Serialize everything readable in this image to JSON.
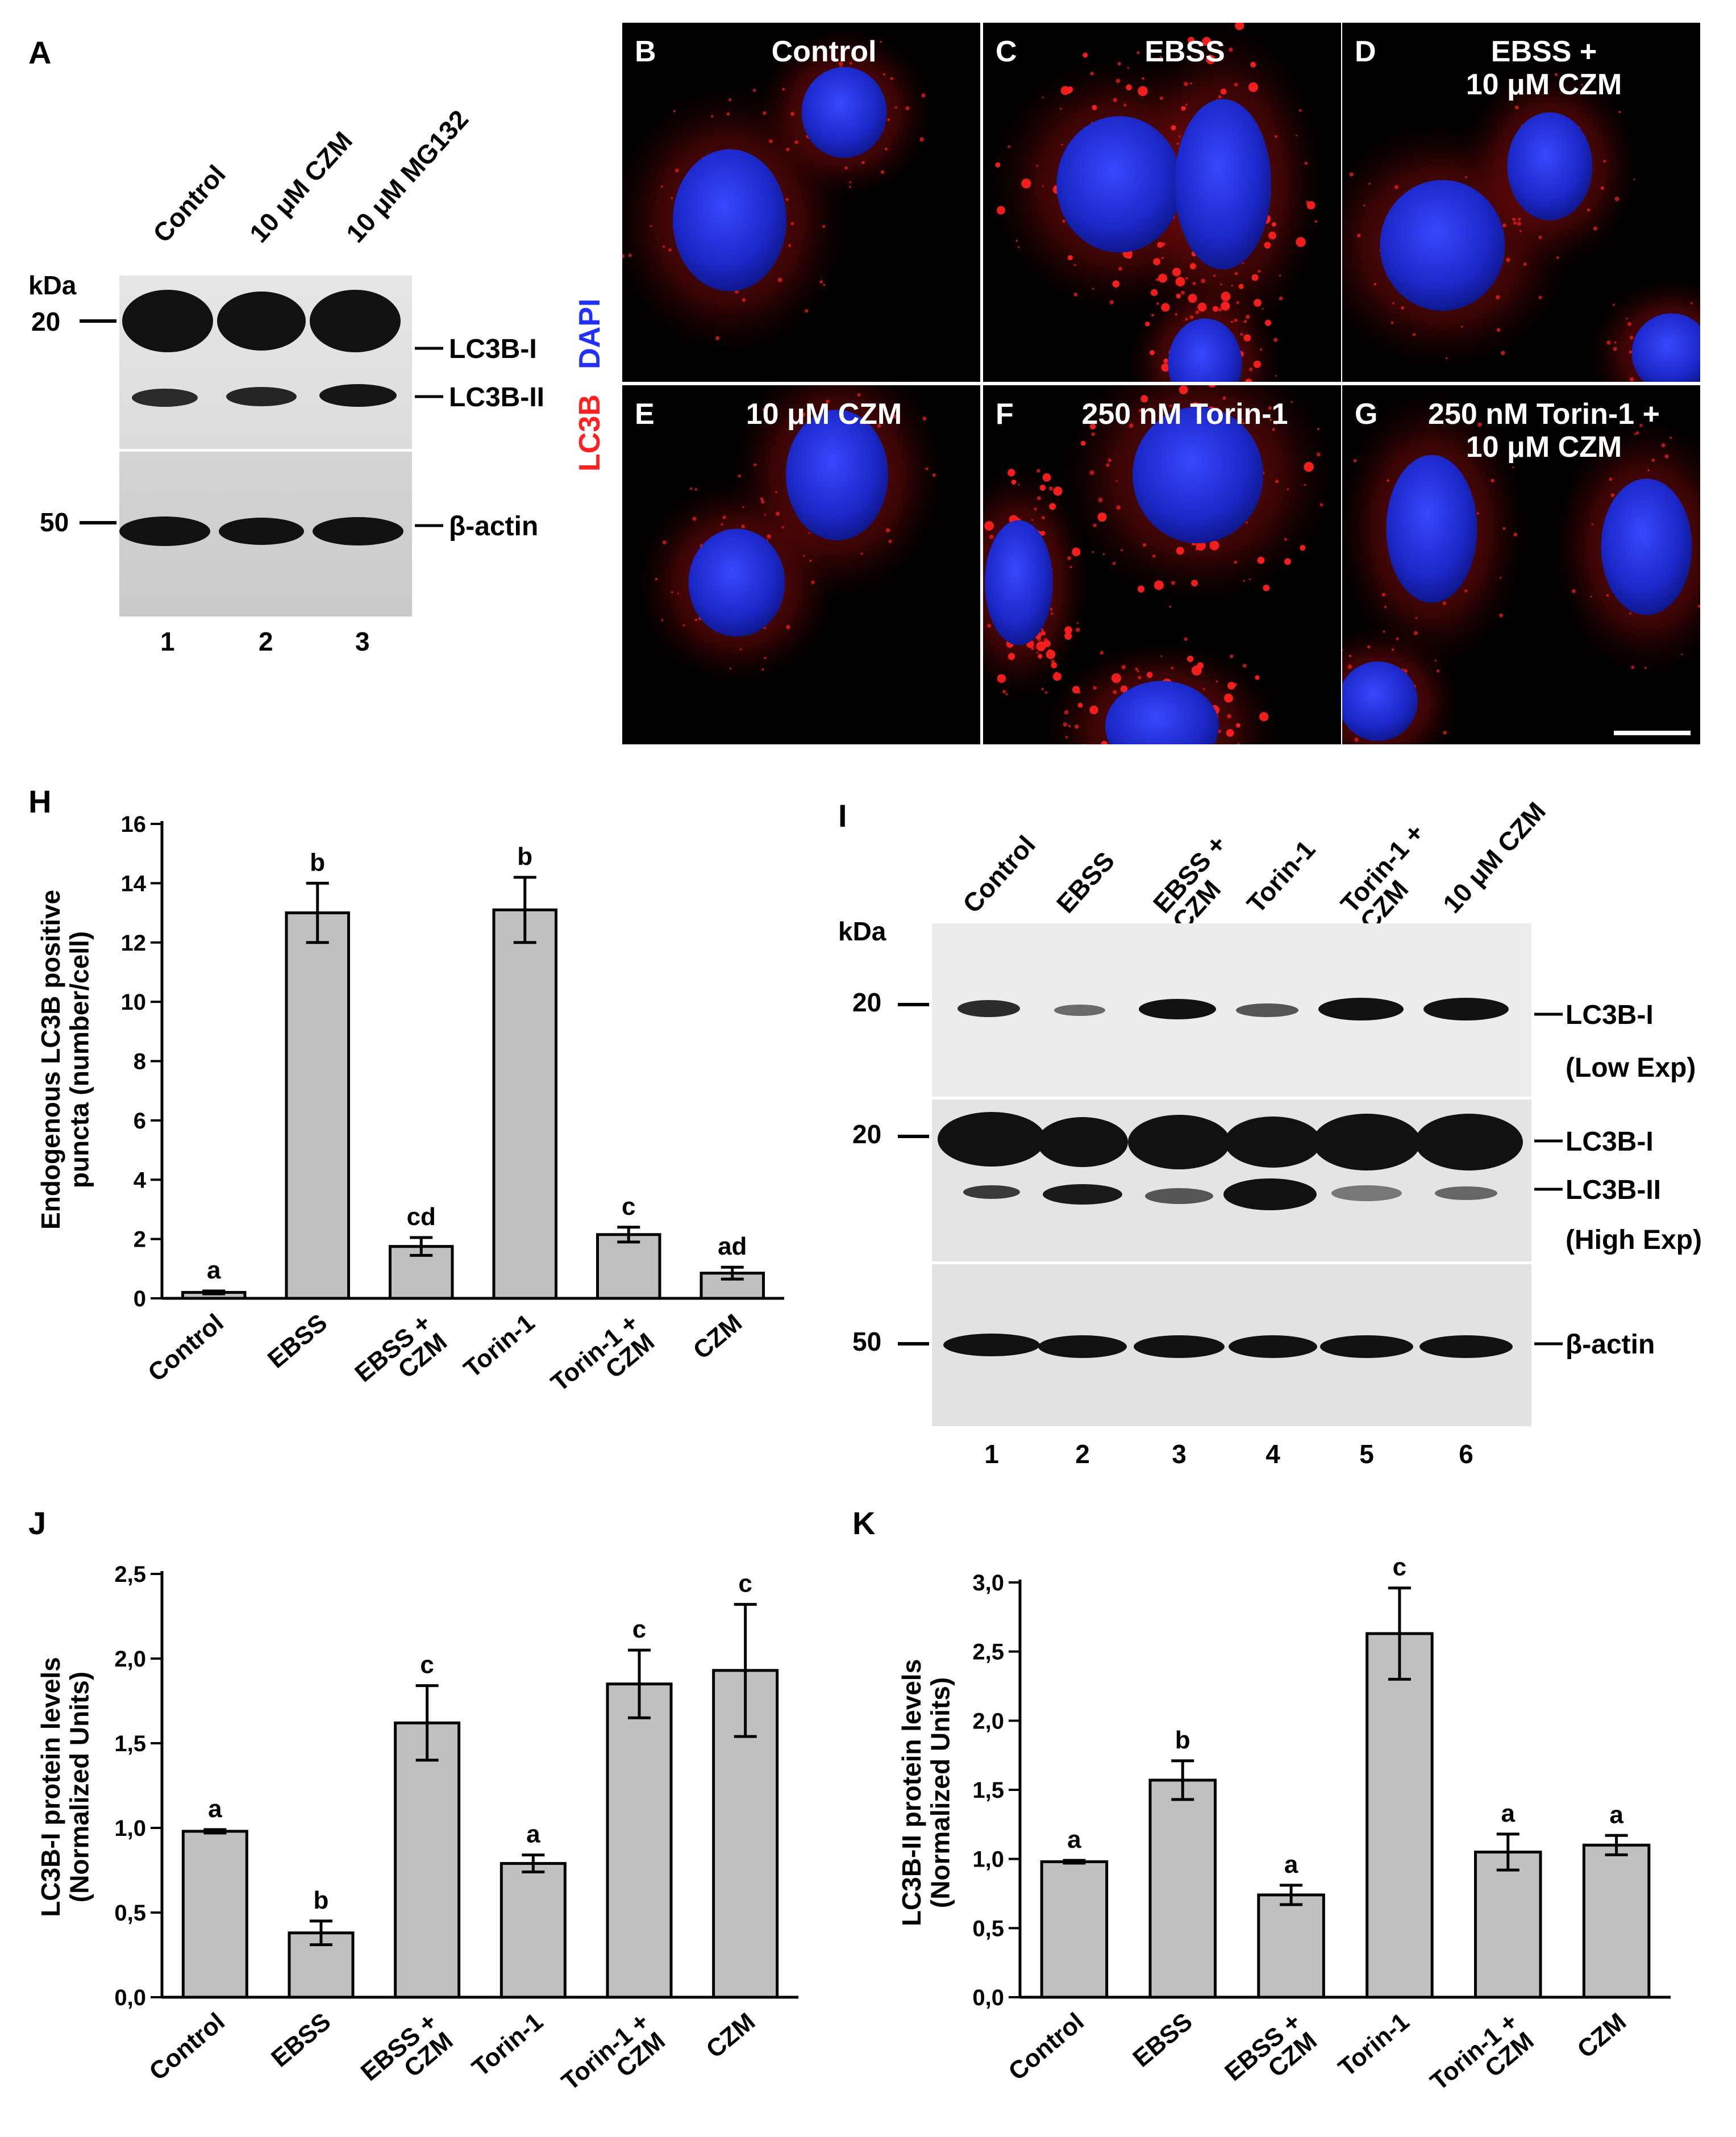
{
  "panelA": {
    "label": "A",
    "kda": "kDa",
    "lanes": [
      "Control",
      "10 μM CZM",
      "10 μM MG132"
    ],
    "markers": [
      "20",
      "50"
    ],
    "bands": [
      "LC3B-I",
      "LC3B-II",
      "β-actin"
    ],
    "lane_numbers": [
      "1",
      "2",
      "3"
    ]
  },
  "micrographs": {
    "stain_lc3b": "LC3B",
    "stain_dapi": "DAPI",
    "panels": [
      {
        "letter": "B",
        "title": [
          "Control"
        ]
      },
      {
        "letter": "C",
        "title": [
          "EBSS"
        ]
      },
      {
        "letter": "D",
        "title": [
          "EBSS +",
          "10 μM CZM"
        ]
      },
      {
        "letter": "E",
        "title": [
          "10 μM CZM"
        ]
      },
      {
        "letter": "F",
        "title": [
          "250 nM Torin-1"
        ]
      },
      {
        "letter": "G",
        "title": [
          "250 nM Torin-1 +",
          "10 μM CZM"
        ]
      }
    ],
    "colors": {
      "lc3b": "#ff2020",
      "dapi": "#2030ff",
      "background": "#000000"
    }
  },
  "panelI": {
    "label": "I",
    "kda": "kDa",
    "lanes": [
      "Control",
      "EBSS",
      "EBSS +\nCZM",
      "Torin-1",
      "Torin-1 +\nCZM",
      "10 μM CZM"
    ],
    "markers": [
      "20",
      "20",
      "50"
    ],
    "bands": [
      "LC3B-I",
      "(Low Exp)",
      "LC3B-I",
      "LC3B-II",
      "(High Exp)",
      "β-actin"
    ],
    "lane_numbers": [
      "1",
      "2",
      "3",
      "4",
      "5",
      "6"
    ]
  },
  "chart_data": [
    {
      "panel": "H",
      "type": "bar",
      "ylabel": [
        "Endogenous LC3B positive",
        "puncta (number/cell)"
      ],
      "categories": [
        "Control",
        "EBSS",
        "EBSS +\nCZM",
        "Torin-1",
        "Torin-1 +\nCZM",
        "CZM"
      ],
      "values": [
        0.2,
        13.0,
        1.75,
        13.1,
        2.15,
        0.85
      ],
      "errors": [
        0.05,
        1.0,
        0.3,
        1.1,
        0.25,
        0.2
      ],
      "significance": [
        "a",
        "b",
        "cd",
        "b",
        "c",
        "ad"
      ],
      "ylim": [
        0,
        16
      ],
      "yticks": [
        "0",
        "2",
        "4",
        "6",
        "8",
        "10",
        "12",
        "14",
        "16"
      ],
      "grid": false,
      "bar_color": "#c0c0c0"
    },
    {
      "panel": "J",
      "type": "bar",
      "ylabel": [
        "LC3B-I protein levels",
        "(Normalized Units)"
      ],
      "categories": [
        "Control",
        "EBSS",
        "EBSS +\nCZM",
        "Torin-1",
        "Torin-1 +\nCZM",
        "CZM"
      ],
      "values": [
        0.98,
        0.38,
        1.62,
        0.79,
        1.85,
        1.93
      ],
      "errors": [
        0.01,
        0.07,
        0.22,
        0.05,
        0.2,
        0.39
      ],
      "significance": [
        "a",
        "b",
        "c",
        "a",
        "c",
        "c"
      ],
      "ylim": [
        0,
        2.5
      ],
      "yticks": [
        "0,0",
        "0,5",
        "1,0",
        "1,5",
        "2,0",
        "2,5"
      ],
      "grid": false,
      "bar_color": "#c0c0c0"
    },
    {
      "panel": "K",
      "type": "bar",
      "ylabel": [
        "LC3B-II protein levels",
        "(Normalized Units)"
      ],
      "categories": [
        "Control",
        "EBSS",
        "EBSS +\nCZM",
        "Torin-1",
        "Torin-1 +\nCZM",
        "CZM"
      ],
      "values": [
        0.98,
        1.57,
        0.74,
        2.63,
        1.05,
        1.1
      ],
      "errors": [
        0.01,
        0.14,
        0.07,
        0.33,
        0.13,
        0.07
      ],
      "significance": [
        "a",
        "b",
        "a",
        "c",
        "a",
        "a"
      ],
      "ylim": [
        0,
        3.0
      ],
      "yticks": [
        "0,0",
        "0,5",
        "1,0",
        "1,5",
        "2,0",
        "2,5",
        "3,0"
      ],
      "grid": false,
      "bar_color": "#c0c0c0"
    }
  ]
}
